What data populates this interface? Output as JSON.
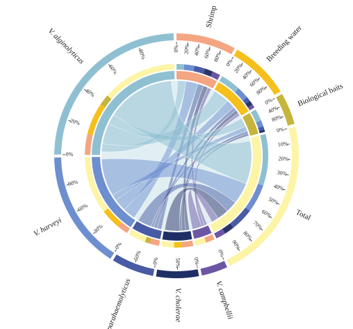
{
  "diagram": {
    "type": "chord",
    "gap_degrees": 1.4,
    "segments": [
      {
        "id": "shrimp",
        "label": "Shrimp",
        "italic": false,
        "share": 0.073,
        "color": "#f4a582",
        "ticks": [
          "0%",
          "20%",
          "40%",
          "60%",
          "80%"
        ],
        "bands": [
          {
            "color": "#8fc0d2",
            "value": 0.17
          },
          {
            "color": "#6e8fcf",
            "value": 0.4
          },
          {
            "color": "#485ba4",
            "value": 0.64
          },
          {
            "color": "#2a346b",
            "value": 0.82
          },
          {
            "color": "#6c56a3",
            "value": 1.0
          }
        ]
      },
      {
        "id": "breeding_water",
        "label": "Breeding water",
        "italic": false,
        "share": 0.073,
        "color": "#f6bf1c",
        "ticks": [
          "0%",
          "20%",
          "40%",
          "60%",
          "80%"
        ],
        "bands": [
          {
            "color": "#8fc0d2",
            "value": 0.45
          },
          {
            "color": "#6e8fcf",
            "value": 0.72
          },
          {
            "color": "#485ba4",
            "value": 0.82
          },
          {
            "color": "#2a346b",
            "value": 0.92
          },
          {
            "color": "#6c56a3",
            "value": 1.0
          }
        ]
      },
      {
        "id": "biological_baits",
        "label": "Biological baits",
        "italic": false,
        "share": 0.039,
        "color": "#c5b53c",
        "ticks": [
          "0%",
          "40%",
          "80%"
        ],
        "bands": [
          {
            "color": "#8fc0d2",
            "value": 0.5
          },
          {
            "color": "#6e8fcf",
            "value": 0.76
          },
          {
            "color": "#485ba4",
            "value": 0.9
          },
          {
            "color": "#2a346b",
            "value": 1.0
          }
        ]
      },
      {
        "id": "total",
        "label": "Total",
        "italic": false,
        "share": 0.2,
        "color": "#fdf4a6",
        "ticks": [
          "0%",
          "10%",
          "20%",
          "30%",
          "40%",
          "50%",
          "60%",
          "70%",
          "80%",
          "90%"
        ],
        "bands": [
          {
            "color": "#8fc0d2",
            "value": 0.42
          },
          {
            "color": "#6e8fcf",
            "value": 0.65
          },
          {
            "color": "#485ba4",
            "value": 0.84
          },
          {
            "color": "#2a346b",
            "value": 0.92
          },
          {
            "color": "#6c56a3",
            "value": 1.0
          }
        ]
      },
      {
        "id": "v_campbellii",
        "label": "V. campbellii",
        "italic": true,
        "share": 0.032,
        "color": "#6c56a3",
        "ticks": [
          "0%"
        ],
        "bands": [
          {
            "color": "#f4a582",
            "value": 0.45
          },
          {
            "color": "#fdf4a6",
            "value": 1.0
          }
        ]
      },
      {
        "id": "v_cholerae",
        "label": "V. cholerae",
        "italic": true,
        "share": 0.052,
        "color": "#1f2f66",
        "ticks": [
          "0%",
          "50%"
        ],
        "bands": [
          {
            "color": "#f4a582",
            "value": 0.35
          },
          {
            "color": "#f6bf1c",
            "value": 0.6
          },
          {
            "color": "#fdf4a6",
            "value": 1.0
          }
        ]
      },
      {
        "id": "v_parahaemolyticus",
        "label": "V. parahaemolyticus",
        "italic": true,
        "share": 0.052,
        "color": "#485ba4",
        "ticks": [
          "0%",
          "50%"
        ],
        "bands": [
          {
            "color": "#f4a582",
            "value": 0.3
          },
          {
            "color": "#c5b53c",
            "value": 0.45
          },
          {
            "color": "#fdf4a6",
            "value": 1.0
          }
        ]
      },
      {
        "id": "v_harveyi",
        "label": "V. harveyi",
        "italic": true,
        "share": 0.145,
        "color": "#6e8fcf",
        "ticks": [
          "0%",
          "30%",
          "60%",
          "90%"
        ],
        "bands": [
          {
            "color": "#f4a582",
            "value": 0.12
          },
          {
            "color": "#f6bf1c",
            "value": 0.35
          },
          {
            "color": "#fdf4a6",
            "value": 1.0
          }
        ]
      },
      {
        "id": "v_alginolyticus",
        "label": "V. alginolyticus",
        "italic": true,
        "share": 0.226,
        "color": "#8fc0d2",
        "ticks": [
          "0%",
          "20%",
          "40%",
          "60%",
          "80%"
        ],
        "bands": [
          {
            "color": "#f4a582",
            "value": 0.15
          },
          {
            "color": "#f6bf1c",
            "value": 0.38
          },
          {
            "color": "#c5b53c",
            "value": 0.46
          },
          {
            "color": "#fdf4a6",
            "value": 1.0
          }
        ]
      }
    ],
    "links": [
      {
        "source": "shrimp",
        "target": "v_alginolyticus",
        "value": 0.7,
        "color": "#8fc0d2"
      },
      {
        "source": "shrimp",
        "target": "v_harveyi",
        "value": 1.0,
        "color": "#6e8fcf"
      },
      {
        "source": "shrimp",
        "target": "v_parahaemolyticus",
        "value": 0.5,
        "color": "#485ba4"
      },
      {
        "source": "shrimp",
        "target": "v_cholerae",
        "value": 0.4,
        "color": "#2a346b"
      },
      {
        "source": "shrimp",
        "target": "v_campbellii",
        "value": 0.3,
        "color": "#6c56a3"
      },
      {
        "source": "breeding_water",
        "target": "v_alginolyticus",
        "value": 1.8,
        "color": "#8fc0d2"
      },
      {
        "source": "breeding_water",
        "target": "v_harveyi",
        "value": 1.0,
        "color": "#6e8fcf"
      },
      {
        "source": "breeding_water",
        "target": "v_parahaemolyticus",
        "value": 0.4,
        "color": "#485ba4"
      },
      {
        "source": "breeding_water",
        "target": "v_cholerae",
        "value": 0.4,
        "color": "#2a346b"
      },
      {
        "source": "breeding_water",
        "target": "v_campbellii",
        "value": 0.3,
        "color": "#6c56a3"
      },
      {
        "source": "biological_baits",
        "target": "v_alginolyticus",
        "value": 0.9,
        "color": "#8fc0d2"
      },
      {
        "source": "biological_baits",
        "target": "v_harveyi",
        "value": 0.5,
        "color": "#6e8fcf"
      },
      {
        "source": "biological_baits",
        "target": "v_parahaemolyticus",
        "value": 0.3,
        "color": "#485ba4"
      },
      {
        "source": "biological_baits",
        "target": "v_cholerae",
        "value": 0.2,
        "color": "#2a346b"
      },
      {
        "source": "total",
        "target": "v_alginolyticus",
        "value": 6.0,
        "color": "#8fc0d2"
      },
      {
        "source": "total",
        "target": "v_harveyi",
        "value": 3.0,
        "color": "#6e8fcf"
      },
      {
        "source": "total",
        "target": "v_parahaemolyticus",
        "value": 1.6,
        "color": "#485ba4"
      },
      {
        "source": "total",
        "target": "v_cholerae",
        "value": 1.6,
        "color": "#2a346b"
      },
      {
        "source": "total",
        "target": "v_campbellii",
        "value": 1.0,
        "color": "#6c56a3"
      }
    ]
  }
}
